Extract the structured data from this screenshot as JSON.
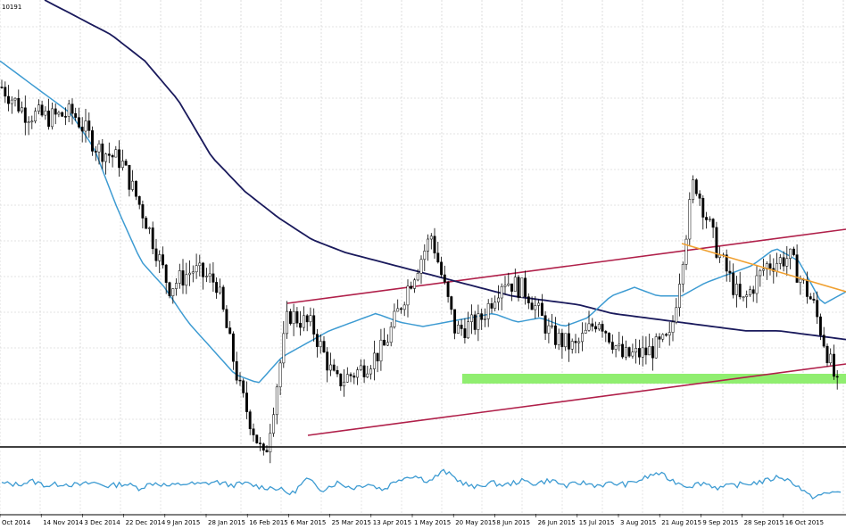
{
  "chart_data": {
    "type": "candlestick",
    "symbol_label": "10191",
    "x_tick_labels": [
      "Oct 2014",
      "14 Nov 2014",
      "3 Dec 2014",
      "22 Dec 2014",
      "9 Jan 2015",
      "28 Jan 2015",
      "16 Feb 2015",
      "6 Mar 2015",
      "25 Mar 2015",
      "13 Apr 2015",
      "1 May 2015",
      "20 May 2015",
      "8 Jun 2015",
      "26 Jun 2015",
      "15 Jul 2015",
      "3 Aug 2015",
      "21 Aug 2015",
      "9 Sep 2015",
      "28 Sep 2015",
      "16 Oct 2015"
    ],
    "grid": true,
    "overlays": [
      "moving-average-fast",
      "moving-average-slow",
      "ascending-channel",
      "descending-trendline",
      "support-zone"
    ],
    "sub_panel": "oscillator",
    "colors": {
      "candles": "#000000",
      "moving_average_fast": "#3d9bd2",
      "moving_average_slow": "#1a1a5c",
      "channel_lines": "#b0204a",
      "descending_trendline": "#f0a030",
      "support_zone": "#90ee70",
      "oscillator": "#3d9bd2"
    },
    "price_path": [
      0.8,
      0.74,
      0.73,
      0.74,
      0.66,
      0.63,
      0.5,
      0.34,
      0.38,
      0.35,
      0.1,
      -0.06,
      0.28,
      0.25,
      0.12,
      0.15,
      0.2,
      0.34,
      0.46,
      0.24,
      0.26,
      0.36,
      0.33,
      0.23,
      0.2,
      0.27,
      0.18,
      0.19,
      0.22,
      0.59,
      0.42,
      0.3,
      0.39,
      0.41,
      0.3,
      0.11
    ],
    "ma_fast": [
      0.86,
      0.82,
      0.78,
      0.74,
      0.66,
      0.52,
      0.4,
      0.34,
      0.26,
      0.2,
      0.14,
      0.12,
      0.18,
      0.21,
      0.24,
      0.26,
      0.28,
      0.26,
      0.25,
      0.26,
      0.27,
      0.28,
      0.26,
      0.27,
      0.25,
      0.27,
      0.32,
      0.34,
      0.32,
      0.32,
      0.35,
      0.37,
      0.39,
      0.43,
      0.4,
      0.3,
      0.33
    ],
    "ma_slow": [
      1.0,
      0.96,
      0.92,
      0.86,
      0.77,
      0.64,
      0.56,
      0.5,
      0.45,
      0.42,
      0.4,
      0.38,
      0.36,
      0.34,
      0.32,
      0.31,
      0.3,
      0.28,
      0.27,
      0.26,
      0.25,
      0.24,
      0.24,
      0.23,
      0.22
    ],
    "oscillator_path": [
      0.5,
      0.48,
      0.55,
      0.45,
      0.5,
      0.46,
      0.52,
      0.44,
      0.5,
      0.4,
      0.52,
      0.44,
      0.5,
      0.48,
      0.54,
      0.46,
      0.5,
      0.42,
      0.4,
      0.26,
      0.6,
      0.36,
      0.52,
      0.4,
      0.5,
      0.36,
      0.6,
      0.68,
      0.55,
      0.78,
      0.56,
      0.4,
      0.52,
      0.46,
      0.56,
      0.5,
      0.58,
      0.44,
      0.52,
      0.46,
      0.5,
      0.48,
      0.6,
      0.74,
      0.56,
      0.44,
      0.52,
      0.4,
      0.46,
      0.5,
      0.55,
      0.66,
      0.5,
      0.2,
      0.26,
      0.34
    ]
  }
}
